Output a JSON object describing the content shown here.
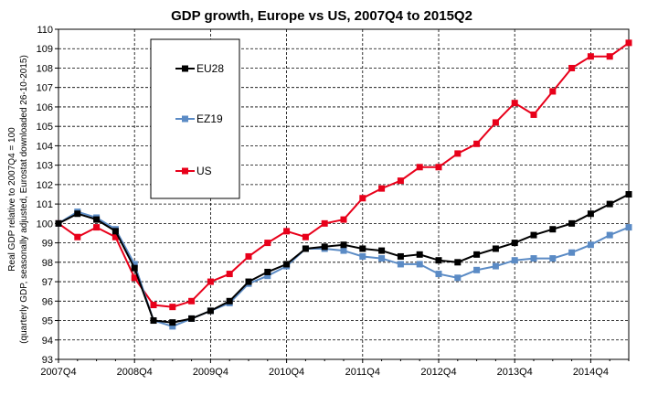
{
  "chart_data": {
    "type": "line",
    "title": "GDP growth, Europe vs US, 2007Q4 to 2015Q2",
    "ylabel_line1": "Real GDP relative to 2007Q4 = 100",
    "ylabel_line2": "(quarterly GDP, seasonally adjusted, Eurostat downloaded 26-10-2015)",
    "xlabel": "",
    "x_tick_labels": [
      "2007Q4",
      "2008Q4",
      "2009Q4",
      "2010Q4",
      "2011Q4",
      "2012Q4",
      "2013Q4",
      "2014Q4"
    ],
    "x_tick_every": 4,
    "y_ticks": [
      93,
      94,
      95,
      96,
      97,
      98,
      99,
      100,
      101,
      102,
      103,
      104,
      105,
      106,
      107,
      108,
      109,
      110
    ],
    "ylim": [
      93,
      110
    ],
    "grid": "horizontal dashed",
    "legend_placement": "upper-left",
    "categories": [
      "2007Q4",
      "2008Q1",
      "2008Q2",
      "2008Q3",
      "2008Q4",
      "2009Q1",
      "2009Q2",
      "2009Q3",
      "2009Q4",
      "2010Q1",
      "2010Q2",
      "2010Q3",
      "2010Q4",
      "2011Q1",
      "2011Q2",
      "2011Q3",
      "2011Q4",
      "2012Q1",
      "2012Q2",
      "2012Q3",
      "2012Q4",
      "2013Q1",
      "2013Q2",
      "2013Q3",
      "2013Q4",
      "2014Q1",
      "2014Q2",
      "2014Q3",
      "2014Q4",
      "2015Q1",
      "2015Q2"
    ],
    "series": [
      {
        "name": "EU28",
        "color": "#000000",
        "values": [
          100.0,
          100.5,
          100.2,
          99.6,
          97.7,
          95.0,
          94.9,
          95.1,
          95.5,
          96.0,
          97.0,
          97.5,
          97.9,
          98.7,
          98.8,
          98.9,
          98.7,
          98.6,
          98.3,
          98.4,
          98.1,
          98.0,
          98.4,
          98.7,
          99.0,
          99.4,
          99.7,
          100.0,
          100.5,
          101.0,
          101.5
        ]
      },
      {
        "name": "EZ19",
        "color": "#5b8bc5",
        "values": [
          100.0,
          100.6,
          100.3,
          99.7,
          97.9,
          95.0,
          94.7,
          95.1,
          95.5,
          95.9,
          96.9,
          97.3,
          97.8,
          98.7,
          98.7,
          98.6,
          98.3,
          98.2,
          97.9,
          97.9,
          97.4,
          97.2,
          97.6,
          97.8,
          98.1,
          98.2,
          98.2,
          98.5,
          98.9,
          99.4,
          99.8
        ]
      },
      {
        "name": "US",
        "color": "#e8001a",
        "values": [
          100.0,
          99.3,
          99.8,
          99.3,
          97.2,
          95.8,
          95.7,
          96.0,
          97.0,
          97.4,
          98.3,
          99.0,
          99.6,
          99.3,
          100.0,
          100.2,
          101.3,
          101.8,
          102.2,
          102.9,
          102.9,
          103.6,
          104.1,
          105.2,
          106.2,
          105.6,
          106.8,
          108.0,
          108.6,
          108.6,
          109.3
        ]
      }
    ]
  }
}
